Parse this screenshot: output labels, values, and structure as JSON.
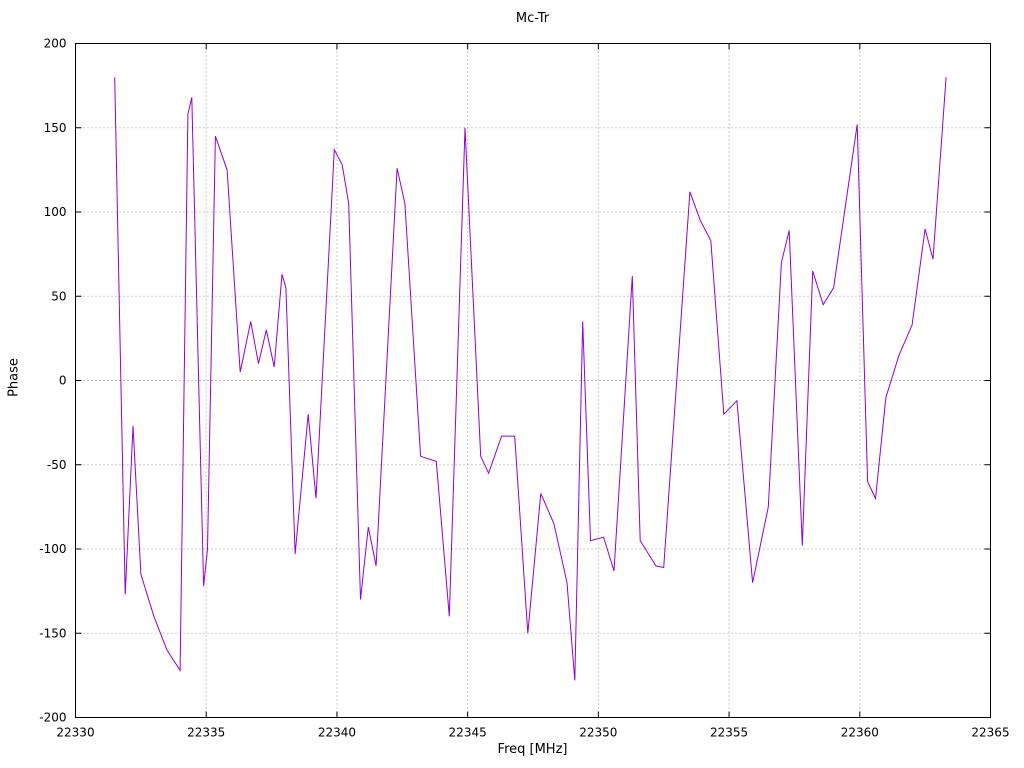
{
  "title": "Mc-Tr",
  "xlabel": "Freq [MHz]",
  "ylabel": "Phase",
  "chart_data": {
    "type": "line",
    "title": "Mc-Tr",
    "xlabel": "Freq [MHz]",
    "ylabel": "Phase",
    "xlim": [
      22330,
      22365
    ],
    "ylim": [
      -200,
      200
    ],
    "x_ticks": [
      22330,
      22335,
      22340,
      22345,
      22350,
      22355,
      22360,
      22365
    ],
    "y_ticks": [
      -200,
      -150,
      -100,
      -50,
      0,
      50,
      100,
      150,
      200
    ],
    "grid": true,
    "legend": "none",
    "line_color": "#9400d3",
    "grid_color": "#9a9a9a",
    "border_color": "#000000",
    "series": [
      {
        "name": "Mc-Tr",
        "x": [
          22331.5,
          22331.9,
          22332.2,
          22332.5,
          22333.0,
          22333.5,
          22334.0,
          22334.3,
          22334.45,
          22334.9,
          22335.05,
          22335.35,
          22335.8,
          22336.3,
          22336.7,
          22337.0,
          22337.3,
          22337.6,
          22337.9,
          22338.05,
          22338.4,
          22338.9,
          22339.2,
          22339.9,
          22340.2,
          22340.45,
          22340.9,
          22341.2,
          22341.5,
          22342.3,
          22342.6,
          22343.2,
          22343.8,
          22344.3,
          22344.9,
          22345.5,
          22345.8,
          22346.3,
          22346.8,
          22347.3,
          22347.8,
          22348.3,
          22348.8,
          22349.1,
          22349.4,
          22349.7,
          22350.2,
          22350.6,
          22351.3,
          22351.6,
          22352.2,
          22352.5,
          22353.5,
          22353.9,
          22354.3,
          22354.8,
          22355.3,
          22355.9,
          22356.5,
          22357.0,
          22357.3,
          22357.8,
          22358.2,
          22358.6,
          22359.0,
          22359.9,
          22360.3,
          22360.6,
          22361.0,
          22361.5,
          22362.0,
          22362.5,
          22362.8,
          22363.3
        ],
        "y": [
          180,
          -127,
          -27,
          -115,
          -140,
          -160,
          -172,
          158,
          168,
          -122,
          -100,
          145,
          125,
          5,
          35,
          10,
          30,
          8,
          63,
          55,
          -103,
          -20,
          -70,
          137,
          128,
          105,
          -130,
          -87,
          -110,
          126,
          105,
          -45,
          -48,
          -140,
          150,
          -45,
          -55,
          -33,
          -33,
          -150,
          -67,
          -85,
          -120,
          -178,
          35,
          -95,
          -93,
          -113,
          62,
          -95,
          -110,
          -111,
          112,
          95,
          83,
          -20,
          -12,
          -120,
          -75,
          70,
          89,
          -98,
          65,
          45,
          55,
          152,
          -60,
          -70,
          -10,
          15,
          33,
          90,
          72,
          180
        ]
      }
    ]
  }
}
